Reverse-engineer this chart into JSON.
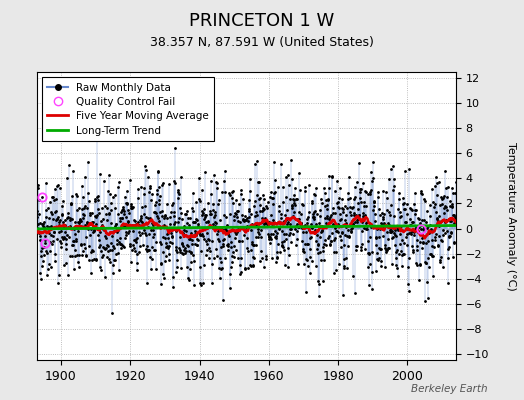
{
  "title": "PRINCETON 1 W",
  "subtitle": "38.357 N, 87.591 W (United States)",
  "ylabel": "Temperature Anomaly (°C)",
  "credit": "Berkeley Earth",
  "xlim": [
    1893,
    2014
  ],
  "ylim": [
    -10.5,
    12.5
  ],
  "yticks": [
    -10,
    -8,
    -6,
    -4,
    -2,
    0,
    2,
    4,
    6,
    8,
    10,
    12
  ],
  "xticks": [
    1900,
    1920,
    1940,
    1960,
    1980,
    2000
  ],
  "raw_color": "#6688cc",
  "ma_color": "#dd0000",
  "trend_color": "#00aa00",
  "qc_color": "#ff44ff",
  "background_color": "#e8e8e8",
  "plot_bg_color": "#ffffff",
  "seed": 42,
  "start_year": 1893,
  "end_year": 2013,
  "n_qc_fails": 3
}
